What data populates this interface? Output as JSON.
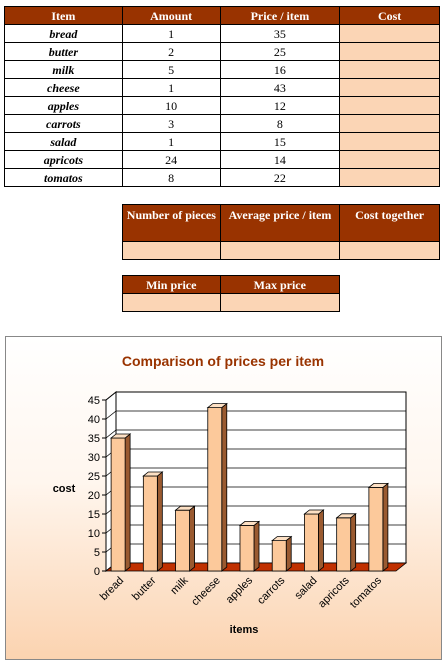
{
  "main_table": {
    "headers": [
      "Item",
      "Amount",
      "Price / item",
      "Cost"
    ],
    "rows": [
      {
        "item": "bread",
        "amount": "1",
        "price": "35",
        "cost": ""
      },
      {
        "item": "butter",
        "amount": "2",
        "price": "25",
        "cost": ""
      },
      {
        "item": "milk",
        "amount": "5",
        "price": "16",
        "cost": ""
      },
      {
        "item": "cheese",
        "amount": "1",
        "price": "43",
        "cost": ""
      },
      {
        "item": "apples",
        "amount": "10",
        "price": "12",
        "cost": ""
      },
      {
        "item": "carrots",
        "amount": "3",
        "price": "8",
        "cost": ""
      },
      {
        "item": "salad",
        "amount": "1",
        "price": "15",
        "cost": ""
      },
      {
        "item": "apricots",
        "amount": "24",
        "price": "14",
        "cost": ""
      },
      {
        "item": "tomatos",
        "amount": "8",
        "price": "22",
        "cost": ""
      }
    ]
  },
  "summary_table": {
    "headers": [
      "Number of pieces",
      "Average price / item",
      "Cost together"
    ],
    "values": [
      "",
      "",
      ""
    ]
  },
  "minmax_table": {
    "headers": [
      "Min price",
      "Max price"
    ],
    "values": [
      "",
      ""
    ]
  },
  "colors": {
    "header_bg": "#993300",
    "header_text": "#ffffff",
    "cost_bg": "#fbd5b5",
    "bar_front": "#fcc99b",
    "bar_top": "#fde0c4",
    "bar_side": "#9a5a30",
    "floor": "#c03000",
    "title_color": "#993300"
  },
  "chart_data": {
    "type": "bar",
    "title": "Comparison of prices per item",
    "xlabel": "items",
    "ylabel": "cost",
    "categories": [
      "bread",
      "butter",
      "milk",
      "cheese",
      "apples",
      "carrots",
      "salad",
      "apricots",
      "tomatos"
    ],
    "values": [
      35,
      25,
      16,
      43,
      12,
      8,
      15,
      14,
      22
    ],
    "ylim": [
      0,
      45
    ],
    "yticks": [
      0,
      5,
      10,
      15,
      20,
      25,
      30,
      35,
      40,
      45
    ],
    "grid": true,
    "legend": "none",
    "style": "3d"
  }
}
